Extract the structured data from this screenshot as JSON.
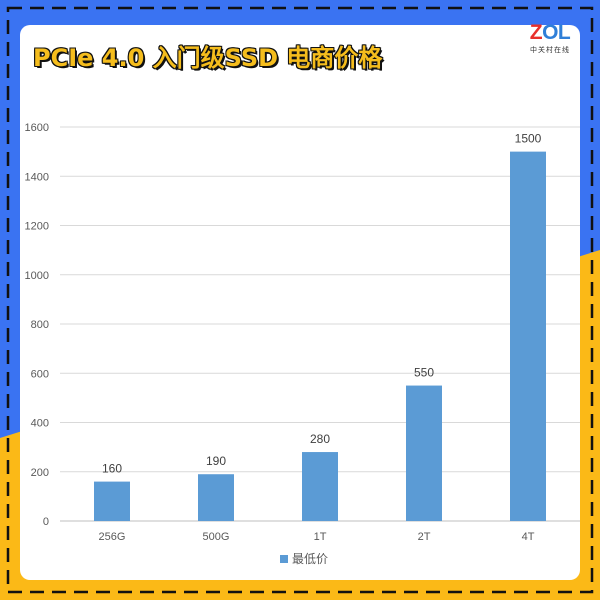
{
  "header": {
    "title": "PCIe 4.0 入门级SSD 电商价格"
  },
  "logo": {
    "mark_letters": [
      "Z",
      "O",
      "L"
    ],
    "mark_colors": [
      "#e8302b",
      "#2f7fd8",
      "#2f7fd8"
    ],
    "subtitle": "中关村在线"
  },
  "colors": {
    "frame_blue": "#3a73f2",
    "frame_yellow": "#fbb917",
    "bar": "#5b9bd5",
    "title_fill": "#f5bd1d"
  },
  "chart_data": {
    "type": "bar",
    "categories": [
      "256G",
      "500G",
      "1T",
      "2T",
      "4T"
    ],
    "series": [
      {
        "name": "最低价",
        "values": [
          160,
          190,
          280,
          550,
          1500
        ]
      }
    ],
    "data_labels": [
      "160",
      "190",
      "280",
      "550",
      "1500"
    ],
    "y_ticks": [
      0,
      200,
      400,
      600,
      800,
      1000,
      1200,
      1400,
      1600
    ],
    "ylim": [
      0,
      1600
    ],
    "grid": true,
    "legend": "bottom-center",
    "title": "",
    "xlabel": "",
    "ylabel": ""
  }
}
